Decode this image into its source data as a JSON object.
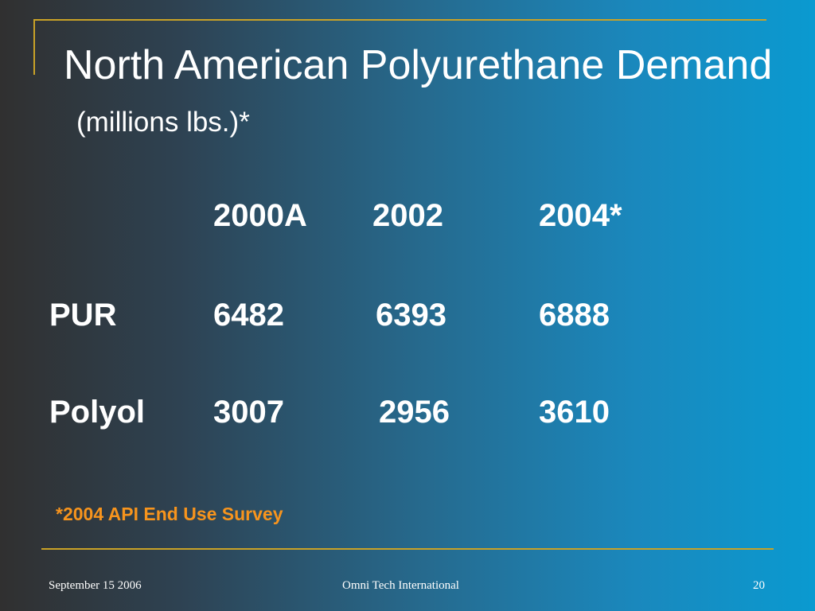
{
  "slide": {
    "title": "North American Polyurethane Demand",
    "subtitle": "(millions lbs.)*",
    "table": {
      "headers": [
        "2000A",
        "2002",
        "2004*"
      ],
      "rows": [
        {
          "label": "PUR",
          "values": [
            "6482",
            "6393",
            "6888"
          ]
        },
        {
          "label": "Polyol",
          "values": [
            "3007",
            "2956",
            "3610"
          ]
        }
      ]
    },
    "footnote": "*2004 API End Use Survey",
    "footer": {
      "date": "September 15 2006",
      "company": "Omni Tech International",
      "page_number": "20"
    }
  },
  "colors": {
    "accent_line": "#c9a227",
    "footnote_text": "#f7941d",
    "text": "#ffffff"
  }
}
